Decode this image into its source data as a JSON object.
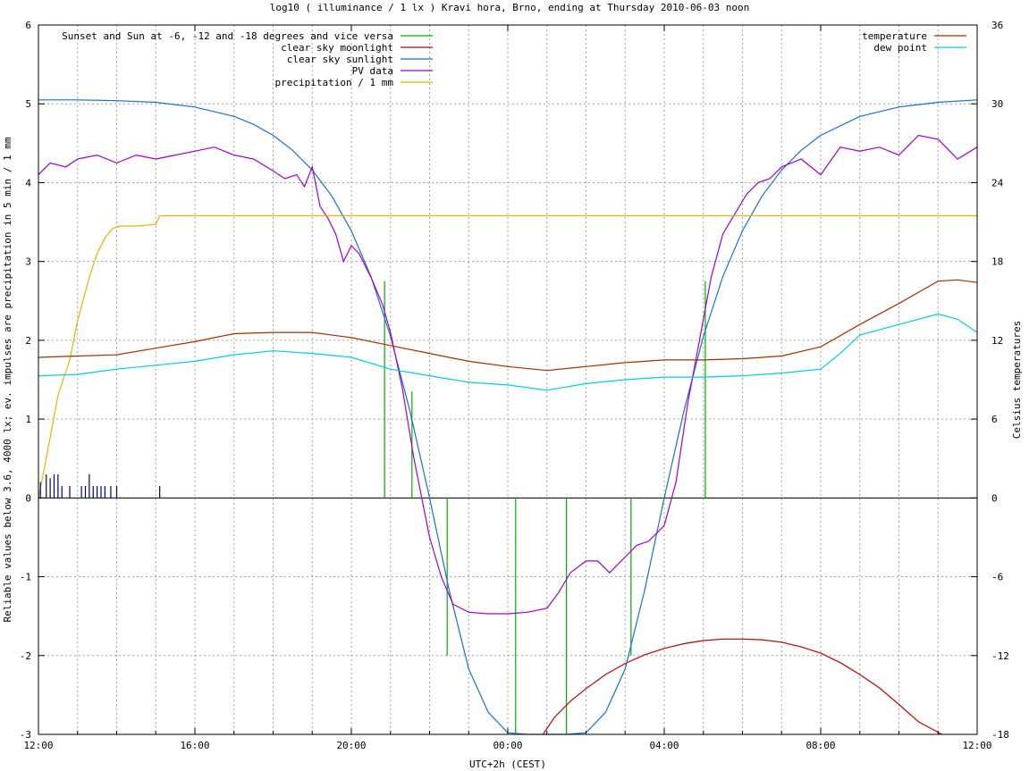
{
  "chart_data": {
    "type": "line",
    "title": "log10 ( illuminance / 1 lx ) Kravi hora, Brno, ending at Thursday 2010-06-03 noon",
    "xlabel": "UTC+2h (CEST)",
    "ylabel_left": "Reliable values below 3.6, 4000 lx; ev. impulses are precipitation in 5 min / 1 mm",
    "ylabel_right": "Celsius temperatures",
    "x_unit": "hours",
    "xlim": [
      12,
      36
    ],
    "ylim_left": [
      -3,
      6
    ],
    "ylim_right": [
      -18,
      36
    ],
    "x_ticks": [
      {
        "x": 12,
        "label": "12:00"
      },
      {
        "x": 16,
        "label": "16:00"
      },
      {
        "x": 20,
        "label": "20:00"
      },
      {
        "x": 24,
        "label": "00:00"
      },
      {
        "x": 28,
        "label": "04:00"
      },
      {
        "x": 32,
        "label": "08:00"
      },
      {
        "x": 36,
        "label": "12:00"
      }
    ],
    "y_ticks_left": [
      "-3",
      "-2",
      "-1",
      "0",
      "1",
      "2",
      "3",
      "4",
      "5",
      "6"
    ],
    "y_ticks_right": [
      "-18",
      "-12",
      "-6",
      "0",
      "6",
      "12",
      "18",
      "24",
      "30",
      "36"
    ],
    "grid": true,
    "legend_left": [
      {
        "label": "Sunset and Sun at -6, -12 and -18 degrees and vice versa",
        "color": "#00b000"
      },
      {
        "label": "clear sky moonlight",
        "color": "#c00000"
      },
      {
        "label": "clear sky sunlight",
        "color": "#1a6fd0"
      },
      {
        "label": "PV data",
        "color": "#a000d0"
      },
      {
        "label": "precipitation / 1 mm",
        "color": "#f0b000"
      }
    ],
    "legend_right": [
      {
        "label": "temperature",
        "color": "#a03000"
      },
      {
        "label": "dew point",
        "color": "#00d0d8"
      }
    ],
    "series": [
      {
        "name": "Sunset and Sun at -6, -12 and -18 degrees and vice versa",
        "color": "#00b000",
        "style": "impulses",
        "x": [
          20.85,
          21.55,
          22.45,
          24.2,
          25.5,
          27.15,
          29.05
        ],
        "y": [
          2.75,
          1.35,
          -2.0,
          -3.0,
          -3.0,
          -2.0,
          2.75
        ]
      },
      {
        "name": "clear sky moonlight",
        "color": "#c00000",
        "axis": "left",
        "x": [
          24.9,
          25.2,
          25.6,
          26.0,
          26.5,
          27.0,
          27.5,
          28.0,
          28.5,
          29.0,
          29.5,
          30.0,
          30.5,
          31.0,
          31.5,
          32.0,
          32.5,
          33.0,
          33.5,
          34.0,
          34.5,
          35.1
        ],
        "y": [
          -3.0,
          -2.78,
          -2.58,
          -2.42,
          -2.24,
          -2.1,
          -1.99,
          -1.91,
          -1.85,
          -1.81,
          -1.79,
          -1.79,
          -1.8,
          -1.83,
          -1.89,
          -1.97,
          -2.09,
          -2.24,
          -2.41,
          -2.62,
          -2.84,
          -3.0
        ]
      },
      {
        "name": "clear sky sunlight",
        "color": "#1a6fd0",
        "axis": "left",
        "x": [
          12.0,
          13.0,
          14.0,
          15.0,
          16.0,
          17.0,
          17.5,
          18.0,
          18.5,
          19.0,
          19.5,
          20.0,
          20.5,
          21.0,
          21.5,
          22.0,
          22.5,
          23.0,
          23.5,
          24.0,
          24.5,
          25.0,
          25.5,
          26.0,
          26.5,
          27.0,
          27.5,
          28.0,
          28.5,
          29.0,
          29.5,
          30.0,
          30.5,
          31.0,
          31.5,
          32.0,
          33.0,
          34.0,
          35.0,
          36.0
        ],
        "y": [
          5.05,
          5.05,
          5.04,
          5.02,
          4.96,
          4.84,
          4.74,
          4.6,
          4.41,
          4.16,
          3.83,
          3.39,
          2.81,
          2.05,
          1.1,
          0.0,
          -1.17,
          -2.17,
          -2.72,
          -2.98,
          -3.0,
          -3.0,
          -3.0,
          -2.98,
          -2.72,
          -2.17,
          -1.17,
          0.0,
          1.1,
          2.05,
          2.81,
          3.39,
          3.83,
          4.16,
          4.41,
          4.6,
          4.84,
          4.96,
          5.02,
          5.05
        ]
      },
      {
        "name": "PV data",
        "color": "#a000d0",
        "axis": "left",
        "x": [
          12.0,
          12.3,
          12.7,
          13.0,
          13.5,
          14.0,
          14.5,
          15.0,
          15.5,
          16.0,
          16.5,
          17.0,
          17.5,
          18.0,
          18.3,
          18.6,
          18.8,
          19.0,
          19.2,
          19.4,
          19.6,
          19.8,
          20.0,
          20.2,
          20.5,
          20.8,
          21.0,
          21.3,
          21.6,
          22.0,
          22.3,
          22.6,
          23.0,
          23.5,
          24.0,
          24.5,
          25.0,
          25.3,
          25.6,
          26.0,
          26.3,
          26.6,
          27.0,
          27.3,
          27.6,
          28.0,
          28.3,
          28.6,
          28.9,
          29.2,
          29.5,
          29.8,
          30.1,
          30.4,
          30.7,
          31.0,
          31.5,
          32.0,
          32.5,
          33.0,
          33.5,
          34.0,
          34.5,
          35.0,
          35.5,
          36.0
        ],
        "y": [
          4.1,
          4.25,
          4.2,
          4.3,
          4.35,
          4.25,
          4.35,
          4.3,
          4.35,
          4.4,
          4.45,
          4.35,
          4.3,
          4.15,
          4.05,
          4.1,
          3.95,
          4.2,
          3.7,
          3.55,
          3.35,
          3.0,
          3.2,
          3.1,
          2.8,
          2.45,
          2.1,
          1.4,
          0.5,
          -0.5,
          -1.0,
          -1.35,
          -1.45,
          -1.47,
          -1.47,
          -1.45,
          -1.4,
          -1.2,
          -0.95,
          -0.8,
          -0.8,
          -0.95,
          -0.75,
          -0.6,
          -0.55,
          -0.35,
          0.2,
          1.2,
          2.0,
          2.8,
          3.35,
          3.6,
          3.85,
          4.0,
          4.05,
          4.2,
          4.3,
          4.1,
          4.45,
          4.4,
          4.45,
          4.35,
          4.6,
          4.55,
          4.3,
          4.45
        ]
      },
      {
        "name": "precipitation / 1 mm",
        "color": "#f0b000",
        "axis": "left",
        "x": [
          12.0,
          12.2,
          12.5,
          12.8,
          13.0,
          13.3,
          13.5,
          13.7,
          13.9,
          14.1,
          14.5,
          15.0,
          15.1,
          36.0
        ],
        "y": [
          0.0,
          0.5,
          1.3,
          1.75,
          2.25,
          2.8,
          3.1,
          3.3,
          3.42,
          3.45,
          3.45,
          3.47,
          3.58,
          3.58
        ]
      },
      {
        "name": "precipitation impulses",
        "color": "#000080",
        "style": "impulses",
        "axis": "left",
        "x": [
          12.05,
          12.2,
          12.3,
          12.4,
          12.5,
          12.6,
          12.8,
          13.1,
          13.2,
          13.3,
          13.4,
          13.5,
          13.6,
          13.7,
          13.85,
          14.0,
          15.1
        ],
        "y": [
          0.2,
          0.3,
          0.25,
          0.3,
          0.3,
          0.15,
          0.15,
          0.15,
          0.15,
          0.3,
          0.15,
          0.15,
          0.15,
          0.15,
          0.15,
          0.15,
          0.15
        ]
      },
      {
        "name": "temperature",
        "color": "#a03000",
        "axis": "right",
        "x": [
          12.0,
          13.0,
          14.0,
          15.0,
          16.0,
          17.0,
          18.0,
          19.0,
          20.0,
          21.0,
          22.0,
          23.0,
          24.0,
          25.0,
          26.0,
          27.0,
          28.0,
          29.0,
          30.0,
          31.0,
          32.0,
          33.0,
          34.0,
          35.0,
          35.5,
          36.0
        ],
        "y": [
          10.7,
          10.8,
          10.9,
          11.4,
          11.9,
          12.5,
          12.6,
          12.6,
          12.2,
          11.6,
          11.0,
          10.4,
          10.0,
          9.7,
          10.0,
          10.3,
          10.5,
          10.5,
          10.6,
          10.8,
          11.5,
          13.2,
          14.8,
          16.5,
          16.6,
          16.4
        ]
      },
      {
        "name": "dew point",
        "color": "#00d0d8",
        "axis": "right",
        "x": [
          12.0,
          13.0,
          14.0,
          15.0,
          16.0,
          17.0,
          18.0,
          19.0,
          20.0,
          21.0,
          22.0,
          23.0,
          24.0,
          25.0,
          26.0,
          27.0,
          28.0,
          29.0,
          30.0,
          31.0,
          32.0,
          32.5,
          33.0,
          34.0,
          35.0,
          35.5,
          36.0
        ],
        "y": [
          9.3,
          9.4,
          9.8,
          10.1,
          10.4,
          10.9,
          11.2,
          11.0,
          10.7,
          9.8,
          9.3,
          8.8,
          8.6,
          8.2,
          8.7,
          9.0,
          9.2,
          9.2,
          9.3,
          9.5,
          9.8,
          11.0,
          12.4,
          13.2,
          14.0,
          13.6,
          12.6
        ]
      }
    ]
  }
}
